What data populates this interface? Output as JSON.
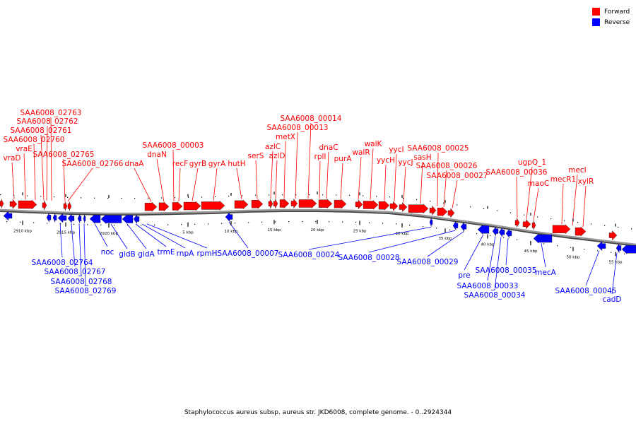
{
  "legend": [
    {
      "label": "Forward",
      "color": "#ff0000"
    },
    {
      "label": "Reverse",
      "color": "#0000ff"
    }
  ],
  "caption": "Staphylococcus aureus subsp. aureus str. JKD6008, complete genome. - 0..2924344",
  "colors": {
    "forward": "#ff0000",
    "reverse": "#0000ff",
    "backbone": "#888888"
  },
  "scale_labels": [
    "2910 kbp",
    "2915 kbp",
    "2920 kbp",
    "5 kbp",
    "10 kbp",
    "15 kbp",
    "20 kbp",
    "25 kbp",
    "30 kbp",
    "35 kbp",
    "40 kbp",
    "45 kbp",
    "50 kbp",
    "55 kbp"
  ],
  "forward_labels": [
    "vraD",
    "vraE",
    "SAA6008_02760",
    "SAA6008_02761",
    "SAA6008_02762",
    "SAA6008_02763",
    "SAA6008_02765",
    "SAA6008_02766",
    "dnaA",
    "dnaN",
    "SAA6008_00003",
    "recF",
    "gyrB",
    "gyrA",
    "hutH",
    "serS",
    "azlC",
    "azlD",
    "metX",
    "SAA6008_00013",
    "SAA6008_00014",
    "rplI",
    "dnaC",
    "purA",
    "walR",
    "walK",
    "yycH",
    "yycI",
    "yycJ",
    "sasH",
    "SAA6008_00025",
    "SAA6008_00026",
    "SAA6008_00027",
    "SAA6008_00036",
    "ugpQ_1",
    "maoC",
    "mecR1",
    "mecI",
    "xylR"
  ],
  "reverse_labels": [
    "SAA6008_02764",
    "SAA6008_02767",
    "SAA6008_02768",
    "SAA6008_02769",
    "noc",
    "gidB",
    "gidA",
    "trmE",
    "rnpA",
    "rpmH",
    "SAA6008_00007",
    "SAA6008_00024",
    "SAA6008_00028",
    "SAA6008_00029",
    "pre",
    "SAA6008_00033",
    "SAA6008_00034",
    "SAA6008_00035",
    "mecA",
    "SAA6008_00045",
    "cadD"
  ]
}
